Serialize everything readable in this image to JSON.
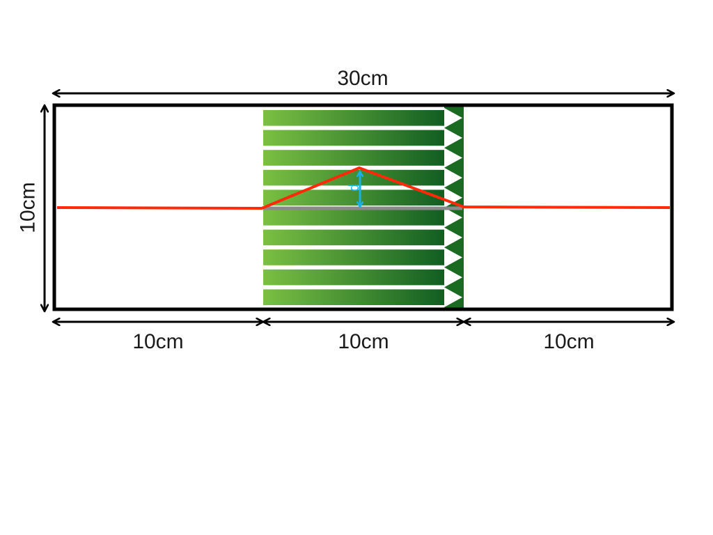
{
  "diagram": {
    "dimensions": {
      "total_width": "30cm",
      "height": "10cm",
      "segments": [
        "10cm",
        "10cm",
        "10cm"
      ]
    },
    "displacement_label": "d",
    "stripe_count": 10,
    "colors": {
      "frame": "#000000",
      "ray": "#ff2a0a",
      "baseline": "#8a8a8a",
      "displacement_arrow": "#1ab0e8",
      "gradient_light": "#7ac043",
      "gradient_dark": "#115e22",
      "arrowhead_column": "#1b6a22"
    }
  }
}
